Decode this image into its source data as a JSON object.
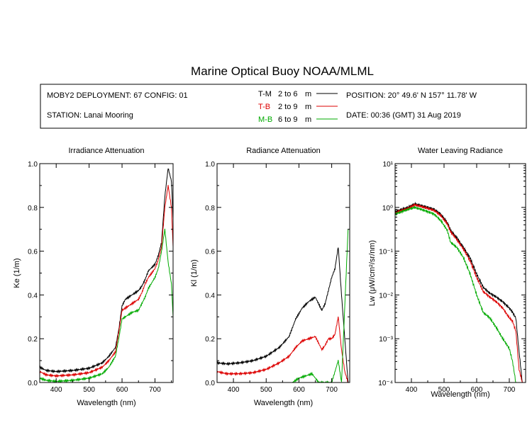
{
  "header": {
    "title": "Marine Optical Buoy NOAA/MLML",
    "deployment": "MOBY2 DEPLOYMENT: 67 CONFIG: 01",
    "station": "STATION: Lanai Mooring",
    "position": "POSITION: 20° 49.6' N   157° 11.78' W",
    "date": "DATE: 00:36 (GMT) 31 Aug 2019"
  },
  "legend": [
    {
      "code": "T-M",
      "range": "2 to 6",
      "unit": "m",
      "color": "#000000"
    },
    {
      "code": "T-B",
      "range": "2 to 9",
      "unit": "m",
      "color": "#dd0000"
    },
    {
      "code": "M-B",
      "range": "6 to 9",
      "unit": "m",
      "color": "#00aa00"
    }
  ],
  "chart_data": [
    {
      "type": "line",
      "title": "Irradiance Attenuation",
      "xlabel": "Wavelength (nm)",
      "ylabel": "Ke  (1/m)",
      "xlim": [
        350,
        755
      ],
      "ylim": [
        0,
        1
      ],
      "xticks": [
        "400",
        "500",
        "600",
        "700"
      ],
      "yticks": [
        "0.0",
        "0.2",
        "0.4",
        "0.6",
        "0.8",
        "1.0"
      ],
      "series": [
        {
          "name": "T-M",
          "color": "#000000",
          "x": [
            350,
            370,
            400,
            450,
            500,
            540,
            560,
            580,
            590,
            600,
            610,
            630,
            650,
            660,
            670,
            680,
            700,
            710,
            720,
            730,
            740,
            750,
            755
          ],
          "y": [
            0.07,
            0.055,
            0.05,
            0.055,
            0.065,
            0.09,
            0.12,
            0.16,
            0.24,
            0.35,
            0.38,
            0.4,
            0.42,
            0.44,
            0.47,
            0.51,
            0.54,
            0.58,
            0.64,
            0.85,
            0.98,
            0.92,
            0.75
          ]
        },
        {
          "name": "T-B",
          "color": "#dd0000",
          "x": [
            350,
            370,
            400,
            450,
            500,
            540,
            560,
            580,
            590,
            600,
            610,
            630,
            650,
            660,
            670,
            680,
            700,
            710,
            720,
            730,
            740,
            750,
            755
          ],
          "y": [
            0.05,
            0.035,
            0.03,
            0.035,
            0.045,
            0.07,
            0.1,
            0.14,
            0.23,
            0.33,
            0.34,
            0.36,
            0.38,
            0.41,
            0.45,
            0.48,
            0.52,
            0.56,
            0.62,
            0.8,
            0.9,
            0.8,
            0.62
          ]
        },
        {
          "name": "M-B",
          "color": "#00aa00",
          "x": [
            350,
            370,
            400,
            450,
            500,
            540,
            560,
            580,
            590,
            600,
            610,
            630,
            650,
            660,
            670,
            680,
            700,
            710,
            720,
            730,
            740,
            750,
            755
          ],
          "y": [
            0.02,
            0.01,
            0.005,
            0.01,
            0.02,
            0.04,
            0.07,
            0.12,
            0.2,
            0.29,
            0.3,
            0.32,
            0.33,
            0.36,
            0.39,
            0.43,
            0.48,
            0.52,
            0.6,
            0.7,
            0.55,
            0.45,
            0.3
          ]
        }
      ]
    },
    {
      "type": "line",
      "title": "Radiance Attenuation",
      "xlabel": "Wavelength (nm)",
      "ylabel": "Kl  (1/m)",
      "xlim": [
        350,
        755
      ],
      "ylim": [
        0,
        1
      ],
      "xticks": [
        "400",
        "500",
        "600",
        "700"
      ],
      "yticks": [
        "0.0",
        "0.2",
        "0.4",
        "0.6",
        "0.8",
        "1.0"
      ],
      "series": [
        {
          "name": "T-M",
          "color": "#000000",
          "x": [
            350,
            380,
            420,
            460,
            500,
            540,
            570,
            590,
            610,
            630,
            650,
            670,
            680,
            690,
            700,
            710,
            720,
            730,
            740,
            750
          ],
          "y": [
            0.09,
            0.085,
            0.09,
            0.1,
            0.12,
            0.16,
            0.21,
            0.29,
            0.34,
            0.37,
            0.39,
            0.33,
            0.36,
            0.42,
            0.48,
            0.52,
            0.62,
            0.4,
            0.2,
            0.0
          ]
        },
        {
          "name": "T-B",
          "color": "#dd0000",
          "x": [
            350,
            380,
            420,
            460,
            500,
            540,
            570,
            590,
            610,
            630,
            650,
            670,
            680,
            690,
            700,
            710,
            720,
            730,
            740,
            750
          ],
          "y": [
            0.05,
            0.04,
            0.04,
            0.045,
            0.06,
            0.09,
            0.12,
            0.16,
            0.19,
            0.2,
            0.21,
            0.15,
            0.17,
            0.2,
            0.2,
            0.22,
            0.3,
            0.15,
            0.05,
            0.0
          ]
        },
        {
          "name": "M-B",
          "color": "#00aa00",
          "x": [
            580,
            600,
            620,
            640,
            660,
            670,
            700,
            720,
            730,
            740,
            750
          ],
          "y": [
            0.0,
            0.02,
            0.03,
            0.04,
            0.0,
            0.0,
            0.0,
            0.1,
            0.0,
            0.35,
            0.7
          ]
        }
      ]
    },
    {
      "type": "line",
      "title": "Water Leaving Radiance",
      "xlabel": "Wavelength (nm)",
      "ylabel": "Lw  (μW/cm²/sr/nm)",
      "yscale": "log",
      "xlim": [
        350,
        750
      ],
      "ylim": [
        0.0001,
        10
      ],
      "xticks": [
        "400",
        "500",
        "600",
        "700"
      ],
      "yticks": [
        "10⁻⁴",
        "10⁻³",
        "10⁻²",
        "10⁻¹",
        "10⁰",
        "10¹"
      ],
      "series": [
        {
          "name": "T-M",
          "color": "#000000",
          "x": [
            350,
            370,
            390,
            410,
            430,
            450,
            470,
            490,
            510,
            520,
            540,
            560,
            580,
            600,
            620,
            640,
            660,
            680,
            700,
            710,
            720,
            730,
            740
          ],
          "y": [
            0.8,
            0.9,
            1.0,
            1.2,
            1.1,
            1.0,
            0.9,
            0.7,
            0.45,
            0.3,
            0.2,
            0.12,
            0.07,
            0.03,
            0.015,
            0.011,
            0.009,
            0.007,
            0.005,
            0.004,
            0.003,
            0.0005,
            0.0001
          ]
        },
        {
          "name": "T-B",
          "color": "#dd0000",
          "x": [
            350,
            370,
            390,
            410,
            430,
            450,
            470,
            490,
            510,
            520,
            540,
            560,
            580,
            600,
            620,
            640,
            660,
            680,
            700,
            710,
            720,
            730,
            740
          ],
          "y": [
            0.75,
            0.85,
            0.95,
            1.15,
            1.05,
            0.95,
            0.85,
            0.65,
            0.42,
            0.28,
            0.18,
            0.11,
            0.06,
            0.025,
            0.012,
            0.009,
            0.007,
            0.005,
            0.003,
            0.0025,
            0.0015,
            0.0002,
            0.0001
          ]
        },
        {
          "name": "M-B",
          "color": "#00aa00",
          "x": [
            350,
            370,
            390,
            410,
            430,
            450,
            470,
            490,
            510,
            520,
            540,
            560,
            580,
            600,
            620,
            640,
            660,
            680,
            700,
            710,
            720
          ],
          "y": [
            0.7,
            0.8,
            0.9,
            1.0,
            0.9,
            0.8,
            0.7,
            0.5,
            0.3,
            0.16,
            0.12,
            0.07,
            0.03,
            0.01,
            0.004,
            0.003,
            0.0018,
            0.001,
            0.0006,
            0.0003,
            0.0001
          ]
        }
      ]
    }
  ]
}
